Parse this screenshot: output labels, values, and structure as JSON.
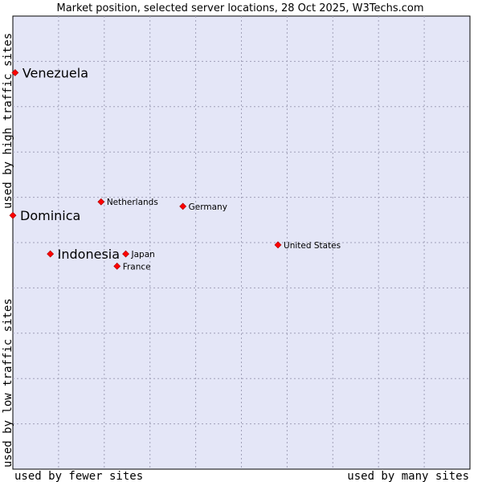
{
  "chart_data": {
    "type": "scatter",
    "title": "Market position, selected server locations, 28 Oct 2025, W3Techs.com",
    "xlabel_left": "used by fewer sites",
    "xlabel_right": "used by many sites",
    "ylabel_bottom": "used by low traffic sites",
    "ylabel_top": "used by high traffic sites",
    "xlim": [
      0,
      10
    ],
    "ylim": [
      0,
      10
    ],
    "grid": true,
    "marker_color": "#ff0000",
    "plot_background": "#e4e6f7",
    "points": [
      {
        "label": "Venezuela",
        "x": 0.05,
        "y": 8.75,
        "emphasis": true
      },
      {
        "label": "Dominica",
        "x": 0.0,
        "y": 5.6,
        "emphasis": true
      },
      {
        "label": "Indonesia",
        "x": 0.82,
        "y": 4.75,
        "emphasis": true
      },
      {
        "label": "Netherlands",
        "x": 1.93,
        "y": 5.9,
        "emphasis": false
      },
      {
        "label": "Germany",
        "x": 3.72,
        "y": 5.8,
        "emphasis": false
      },
      {
        "label": "Japan",
        "x": 2.47,
        "y": 4.75,
        "emphasis": false
      },
      {
        "label": "France",
        "x": 2.28,
        "y": 4.48,
        "emphasis": false
      },
      {
        "label": "United States",
        "x": 5.8,
        "y": 4.95,
        "emphasis": false
      }
    ]
  }
}
